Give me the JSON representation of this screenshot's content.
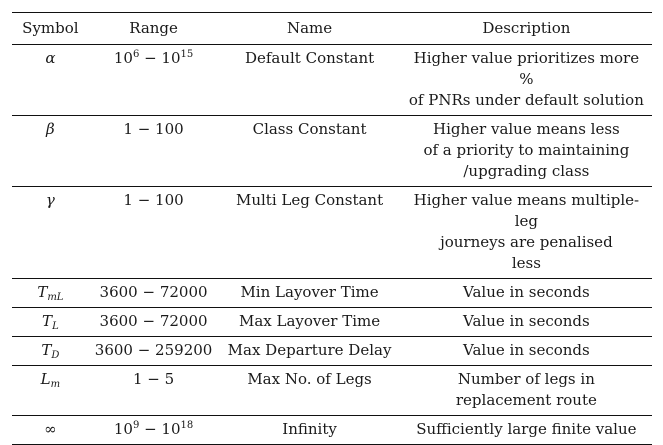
{
  "table": {
    "headers": {
      "symbol": "Symbol",
      "range": "Range",
      "name": "Name",
      "description": "Description"
    },
    "rows": [
      {
        "symbol": "α",
        "range": {
          "a_base": "10",
          "a_exp": "6",
          "sep": " − ",
          "b_base": "10",
          "b_exp": "15"
        },
        "name": "Default Constant",
        "description": [
          "Higher value prioritizes more %",
          "of PNRs under default solution"
        ]
      },
      {
        "symbol": "β",
        "range_text": "1 − 100",
        "name": "Class Constant",
        "description": [
          "Higher value means less",
          "of a priority to maintaining",
          "/upgrading class"
        ]
      },
      {
        "symbol": "γ",
        "range_text": "1 − 100",
        "name": "Multi Leg Constant",
        "description": [
          "Higher value means multiple-leg",
          "journeys are penalised",
          "less"
        ]
      },
      {
        "symbol_base": "T",
        "symbol_sub": "mL",
        "range_text": "3600 − 72000",
        "name": "Min Layover Time",
        "description": [
          "Value in seconds"
        ]
      },
      {
        "symbol_base": "T",
        "symbol_sub": "L",
        "range_text": "3600 − 72000",
        "name": "Max Layover Time",
        "description": [
          "Value in seconds"
        ]
      },
      {
        "symbol_base": "T",
        "symbol_sub": "D",
        "range_text": "3600 − 259200",
        "name": "Max Departure Delay",
        "description": [
          "Value in seconds"
        ]
      },
      {
        "symbol_base": "L",
        "symbol_sub": "m",
        "range_text": "1 − 5",
        "name": "Max No. of Legs",
        "description": [
          "Number of legs in",
          "replacement route"
        ]
      },
      {
        "symbol": "∞",
        "range": {
          "a_base": "10",
          "a_exp": "9",
          "sep": " − ",
          "b_base": "10",
          "b_exp": "18"
        },
        "name": "Infinity",
        "description": [
          "Sufficiently large finite value"
        ]
      }
    ]
  }
}
